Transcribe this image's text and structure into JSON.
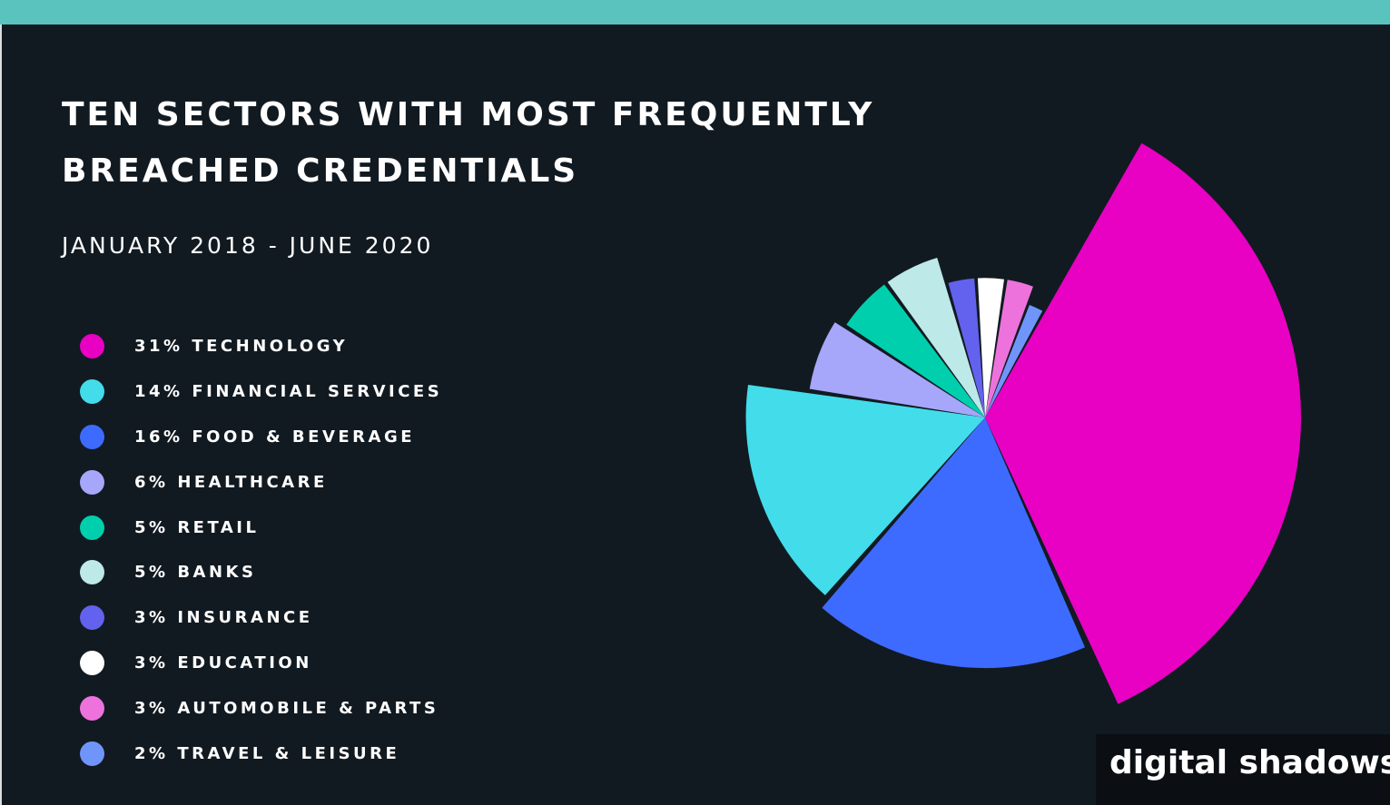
{
  "header": {
    "title_line1": "TEN SECTORS WITH MOST FREQUENTLY",
    "title_line2": "BREACHED CREDENTIALS",
    "subtitle": "JANUARY 2018 - JUNE 2020"
  },
  "legend": [
    {
      "label": "31% TECHNOLOGY",
      "color": "#e800c3"
    },
    {
      "label": "14% FINANCIAL SERVICES",
      "color": "#43dceb"
    },
    {
      "label": "16% FOOD & BEVERAGE",
      "color": "#3d6bff"
    },
    {
      "label": "6% HEALTHCARE",
      "color": "#a6a6fa"
    },
    {
      "label": "5% RETAIL",
      "color": "#00cfae"
    },
    {
      "label": "5% BANKS",
      "color": "#bde9e8"
    },
    {
      "label": "3% INSURANCE",
      "color": "#6262ee"
    },
    {
      "label": "3% EDUCATION",
      "color": "#ffffff"
    },
    {
      "label": "3% AUTOMOBILE & PARTS",
      "color": "#ee72dc"
    },
    {
      "label": "2% TRAVEL & LEISURE",
      "color": "#7095fa"
    }
  ],
  "chart_data": {
    "type": "pie",
    "variant": "polar-area",
    "title": "TEN SECTORS WITH MOST FREQUENTLY BREACHED CREDENTIALS",
    "subtitle": "JANUARY 2018 - JUNE 2020",
    "categories": [
      "TECHNOLOGY",
      "FOOD & BEVERAGE",
      "FINANCIAL SERVICES",
      "HEALTHCARE",
      "RETAIL",
      "BANKS",
      "INSURANCE",
      "EDUCATION",
      "AUTOMOBILE & PARTS",
      "TRAVEL & LEISURE"
    ],
    "values": [
      31,
      16,
      14,
      6,
      5,
      5,
      3,
      3,
      3,
      2
    ],
    "colors": [
      "#e800c3",
      "#3d6bff",
      "#43dceb",
      "#a6a6fa",
      "#00cfae",
      "#bde9e8",
      "#6262ee",
      "#ffffff",
      "#ee72dc",
      "#7095fa"
    ],
    "unit": "%"
  },
  "brand": {
    "name": "digital shadows"
  }
}
